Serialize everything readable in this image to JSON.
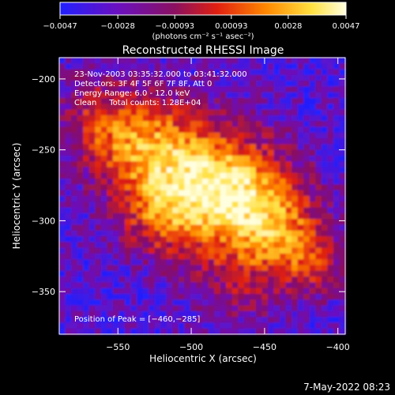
{
  "chart_data": {
    "type": "heatmap",
    "title": "Reconstructed RHESSI Image",
    "xlabel": "Heliocentric X (arcsec)",
    "ylabel": "Heliocentric Y (arcsec)",
    "xlim": [
      -590,
      -395
    ],
    "ylim": [
      -380,
      -185
    ],
    "x_ticks": [
      -550,
      -500,
      -450,
      -400
    ],
    "x_tick_labels": [
      "−550",
      "−500",
      "−450",
      "−400"
    ],
    "y_ticks": [
      -200,
      -250,
      -300,
      -350
    ],
    "y_tick_labels": [
      "−200",
      "−250",
      "−300",
      "−350"
    ],
    "colorbar": {
      "range": [
        -0.0047,
        0.0047
      ],
      "ticks": [
        -0.0047,
        -0.0028,
        -0.00093,
        0.00093,
        0.0028,
        0.0047
      ],
      "tick_labels": [
        "−0.0047",
        "−0.0028",
        "−0.00093",
        "0.00093",
        "0.0028",
        "0.0047"
      ],
      "unit_label": "(photons cm⁻² s⁻¹ asec⁻²)",
      "colors": [
        "#2020ff",
        "#6a10c0",
        "#8a1060",
        "#e02010",
        "#ff8800",
        "#ffe040",
        "#ffffe0"
      ]
    },
    "annotations": [
      "23-Nov-2003 03:35:32.000 to 03:41:32.000",
      "Detectors: 3F 4F 5F 6F 7F 8F, Att 0",
      "Energy Range: 6.0 - 12.0 keV",
      "Clean     Total counts: 1.28E+04"
    ],
    "peak_label": "Position of Peak = [−460,−285]",
    "peak": [
      -460,
      -285
    ]
  },
  "footer": {
    "timestamp": "7-May-2022 08:23"
  }
}
